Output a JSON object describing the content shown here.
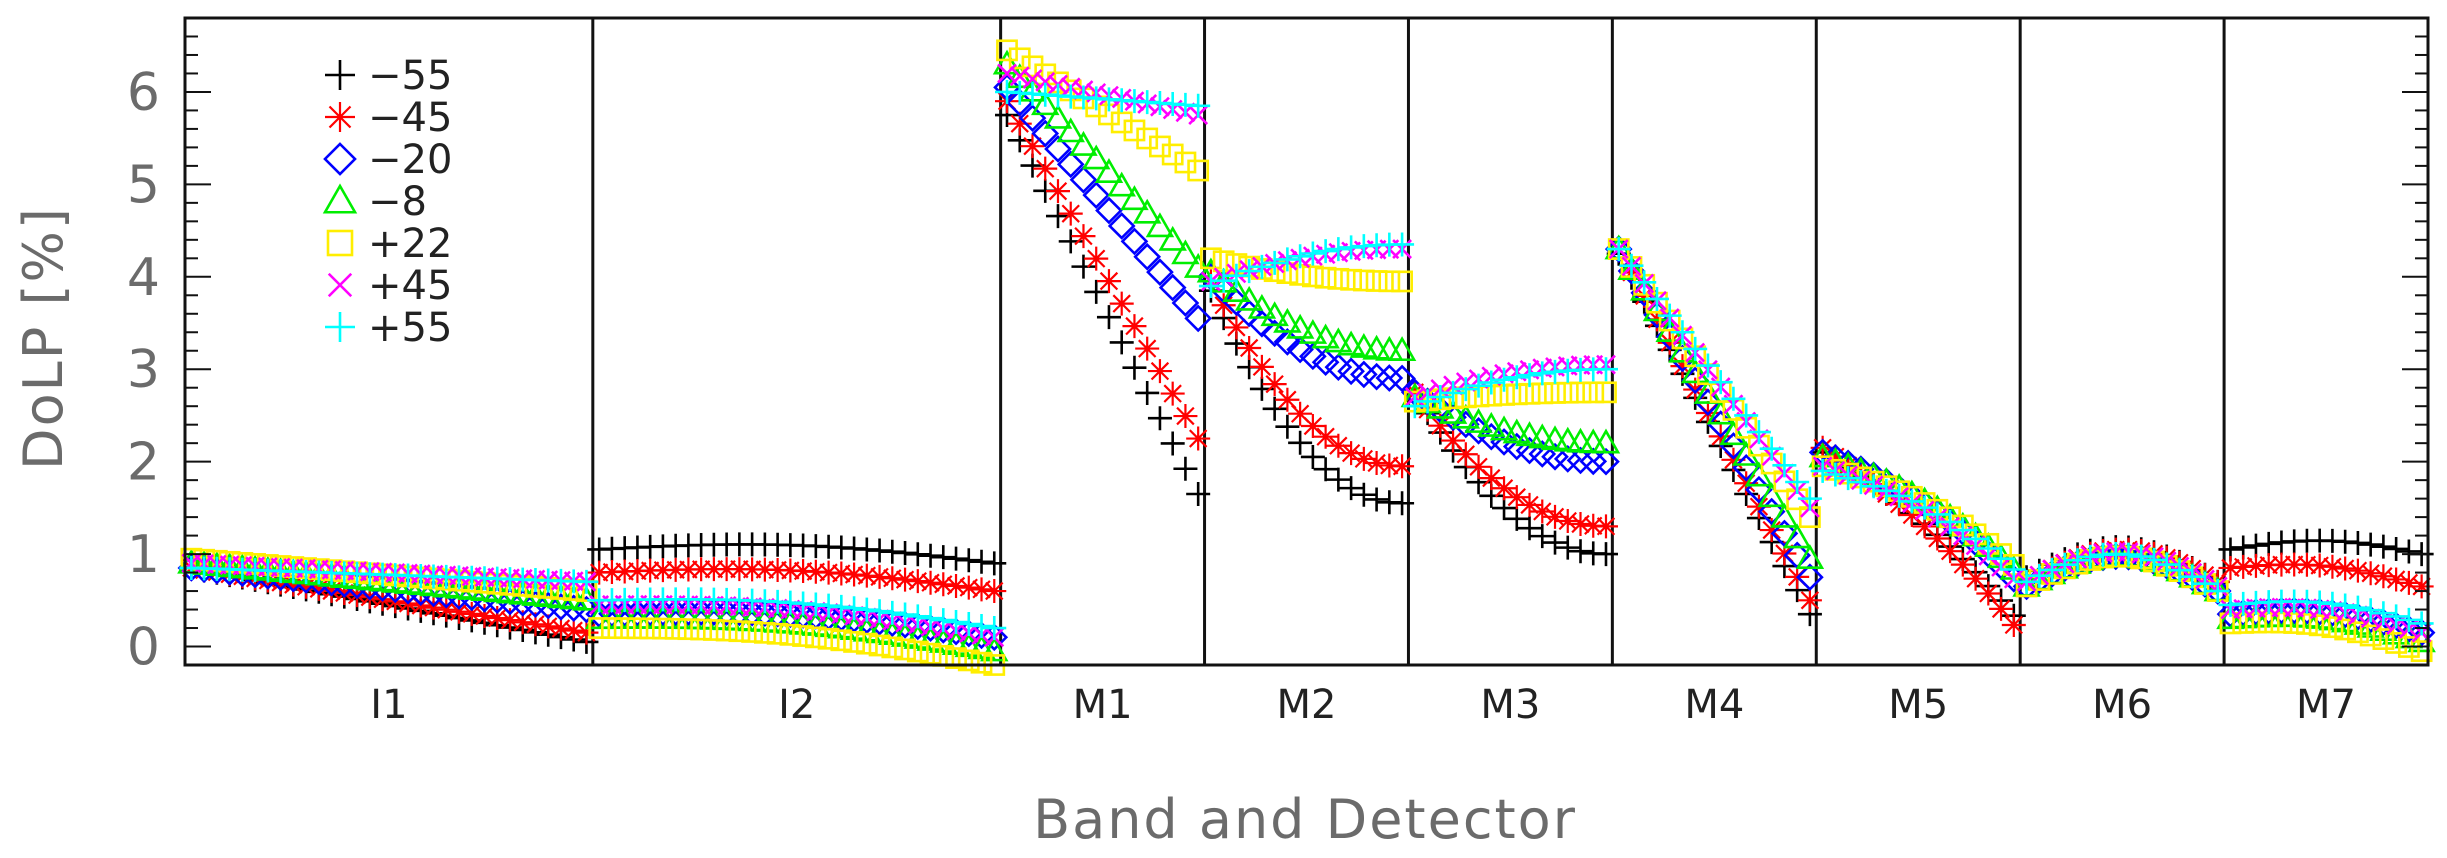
{
  "chart_data": {
    "type": "scatter",
    "title": "",
    "xlabel": "Band and Detector",
    "ylabel": "DoLP [%]",
    "ylim": [
      -0.2,
      6.8
    ],
    "yticks": [
      0,
      1,
      2,
      3,
      4,
      5,
      6
    ],
    "ytick_labels": [
      "0",
      "1",
      "2",
      "3",
      "4",
      "5",
      "6"
    ],
    "legend_position": "top-left",
    "bands": [
      {
        "label": "I1",
        "detectors": 32
      },
      {
        "label": "I2",
        "detectors": 32
      },
      {
        "label": "M1",
        "detectors": 16
      },
      {
        "label": "M2",
        "detectors": 16
      },
      {
        "label": "M3",
        "detectors": 16
      },
      {
        "label": "M4",
        "detectors": 16
      },
      {
        "label": "M5",
        "detectors": 16
      },
      {
        "label": "M6",
        "detectors": 16
      },
      {
        "label": "M7",
        "detectors": 16
      }
    ],
    "series": [
      {
        "name": "−55",
        "marker": "plus",
        "color": "#000000",
        "bands": {
          "I1": [
            0.85,
            0.05
          ],
          "I2": [
            1.05,
            0.9
          ],
          "M1": [
            5.75,
            1.65
          ],
          "M2": [
            3.85,
            1.55
          ],
          "M3": [
            2.75,
            1.0
          ],
          "M4": [
            4.25,
            0.35
          ],
          "M5": [
            2.1,
            0.05
          ],
          "M6": [
            0.75,
            0.7
          ],
          "M7": [
            1.05,
            1.0
          ]
        }
      },
      {
        "name": "−45",
        "marker": "asterisk",
        "color": "#ff0000",
        "bands": {
          "I1": [
            0.85,
            0.15
          ],
          "I2": [
            0.8,
            0.6
          ],
          "M1": [
            5.9,
            2.25
          ],
          "M2": [
            3.95,
            1.95
          ],
          "M3": [
            2.75,
            1.3
          ],
          "M4": [
            4.3,
            0.5
          ],
          "M5": [
            2.15,
            -0.05
          ],
          "M6": [
            0.7,
            0.7
          ],
          "M7": [
            0.85,
            0.65
          ]
        }
      },
      {
        "name": "−20",
        "marker": "diamond",
        "color": "#0000ff",
        "bands": {
          "I1": [
            0.85,
            0.4
          ],
          "I2": [
            0.35,
            0.1
          ],
          "M1": [
            6.05,
            3.55
          ],
          "M2": [
            4.0,
            2.9
          ],
          "M3": [
            2.75,
            2.0
          ],
          "M4": [
            4.3,
            0.75
          ],
          "M5": [
            2.1,
            0.45
          ],
          "M6": [
            0.65,
            0.6
          ],
          "M7": [
            0.35,
            0.15
          ]
        }
      },
      {
        "name": "−8",
        "marker": "triangle",
        "color": "#00ee00",
        "bands": {
          "I1": [
            0.9,
            0.5
          ],
          "I2": [
            0.3,
            -0.05
          ],
          "M1": [
            6.3,
            4.1
          ],
          "M2": [
            4.05,
            3.2
          ],
          "M3": [
            2.7,
            2.2
          ],
          "M4": [
            4.3,
            0.95
          ],
          "M5": [
            2.05,
            0.55
          ],
          "M6": [
            0.65,
            0.6
          ],
          "M7": [
            0.3,
            0.05
          ]
        }
      },
      {
        "name": "+22",
        "marker": "square",
        "color": "#ffee00",
        "bands": {
          "I1": [
            0.95,
            0.6
          ],
          "I2": [
            0.2,
            -0.2
          ],
          "M1": [
            6.45,
            5.15
          ],
          "M2": [
            4.2,
            3.95
          ],
          "M3": [
            2.65,
            2.75
          ],
          "M4": [
            4.3,
            1.4
          ],
          "M5": [
            1.95,
            0.6
          ],
          "M6": [
            0.65,
            0.6
          ],
          "M7": [
            0.25,
            -0.05
          ]
        }
      },
      {
        "name": "+45",
        "marker": "cross",
        "color": "#ff00ff",
        "bands": {
          "I1": [
            0.9,
            0.7
          ],
          "I2": [
            0.45,
            0.1
          ],
          "M1": [
            6.2,
            5.75
          ],
          "M2": [
            3.95,
            4.3
          ],
          "M3": [
            2.7,
            3.05
          ],
          "M4": [
            4.3,
            1.5
          ],
          "M5": [
            1.95,
            0.45
          ],
          "M6": [
            0.7,
            0.65
          ],
          "M7": [
            0.4,
            0.15
          ]
        }
      },
      {
        "name": "+55",
        "marker": "plus",
        "color": "#00ffff",
        "bands": {
          "I1": [
            0.85,
            0.7
          ],
          "I2": [
            0.5,
            0.2
          ],
          "M1": [
            6.0,
            5.85
          ],
          "M2": [
            3.9,
            4.35
          ],
          "M3": [
            2.6,
            3.0
          ],
          "M4": [
            4.3,
            1.6
          ],
          "M5": [
            1.9,
            0.55
          ],
          "M6": [
            0.7,
            0.6
          ],
          "M7": [
            0.45,
            0.25
          ]
        }
      }
    ]
  }
}
